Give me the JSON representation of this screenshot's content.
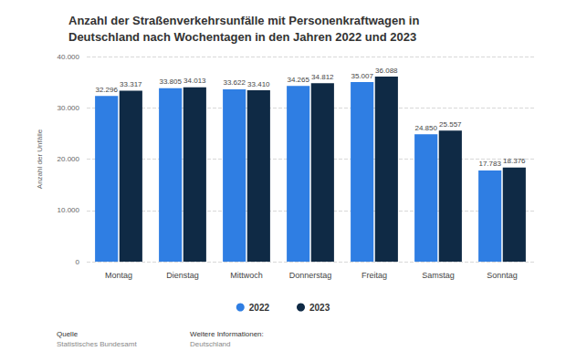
{
  "chart_data": {
    "type": "bar",
    "title": "Anzahl der Straßenverkehrsunfälle mit Personenkraftwagen in Deutschland nach Wochentagen in den Jahren 2022 und 2023",
    "y_label": "Anzahl der Unfälle",
    "categories": [
      "Montag",
      "Dienstag",
      "Mittwoch",
      "Donnerstag",
      "Freitag",
      "Samstag",
      "Sonntag"
    ],
    "series": [
      {
        "name": "2022",
        "color": "#2f7ee3",
        "values": [
          32296,
          33805,
          33622,
          34265,
          35007,
          24850,
          17783
        ],
        "value_labels": [
          "32.296",
          "33.805",
          "33.622",
          "34.265",
          "35.007",
          "24.850",
          "17.783"
        ]
      },
      {
        "name": "2023",
        "color": "#0f2a45",
        "values": [
          33317,
          34013,
          33410,
          34812,
          36088,
          25557,
          18376
        ],
        "value_labels": [
          "33.317",
          "34.013",
          "33.410",
          "34.812",
          "36.088",
          "25.557",
          "18.376"
        ]
      }
    ],
    "ylim": [
      0,
      40000
    ],
    "yticks": [
      0,
      {
        "value": 10000,
        "label": "10.000"
      },
      {
        "value": 20000,
        "label": "20.000"
      },
      {
        "value": 30000,
        "label": "30.000"
      },
      {
        "value": 40000,
        "label": "40.000"
      }
    ],
    "grid": true,
    "legend": "bottom",
    "data_labels": true,
    "annotations": [
      "Quelle",
      "Statistisches Bundesamt",
      "Weitere Informationen:",
      "Deutschland"
    ]
  }
}
